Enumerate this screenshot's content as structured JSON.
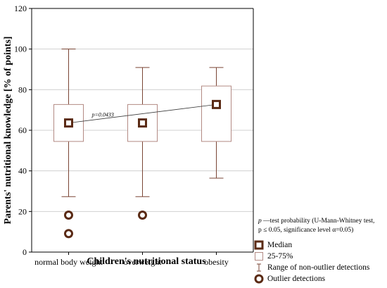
{
  "chart_data": {
    "type": "boxplot",
    "title": "",
    "xlabel": "Children's nutritional status",
    "ylabel": "Parents' nutritional knowledge [% of points]",
    "ylim": [
      0,
      120
    ],
    "yticks": [
      0,
      20,
      40,
      60,
      80,
      100,
      120
    ],
    "grid": true,
    "categories": [
      "normal body weight",
      "overweight",
      "obesity"
    ],
    "boxes": [
      {
        "category": "normal body weight",
        "median": 63.6,
        "q1": 54.5,
        "q3": 72.7,
        "whisker_low": 27.3,
        "whisker_high": 100,
        "outliers": [
          18.2,
          9.1
        ]
      },
      {
        "category": "overweight",
        "median": 63.6,
        "q1": 54.5,
        "q3": 72.7,
        "whisker_low": 27.3,
        "whisker_high": 90.9,
        "outliers": [
          18.2
        ]
      },
      {
        "category": "obesity",
        "median": 72.7,
        "q1": 54.5,
        "q3": 81.8,
        "whisker_low": 36.4,
        "whisker_high": 90.9,
        "outliers": []
      }
    ],
    "annotations": [
      {
        "text": "p=0.0433",
        "from": "normal body weight",
        "to": "obesity"
      }
    ],
    "colors": {
      "box": "#b38a84",
      "median": "#5a2a14",
      "grid": "#d0d0d0"
    },
    "legend_placement": "bottom-right"
  },
  "note": {
    "p_symbol": "p",
    "line1_rest": " —test probability (U-Mann-Whitney test,",
    "line2": "p ≤ 0.05, significance level α=0.05)"
  },
  "legend": {
    "median": "Median",
    "box": "25-75%",
    "range": "Range of non-outlier detections",
    "outlier": "Outlier detections"
  }
}
